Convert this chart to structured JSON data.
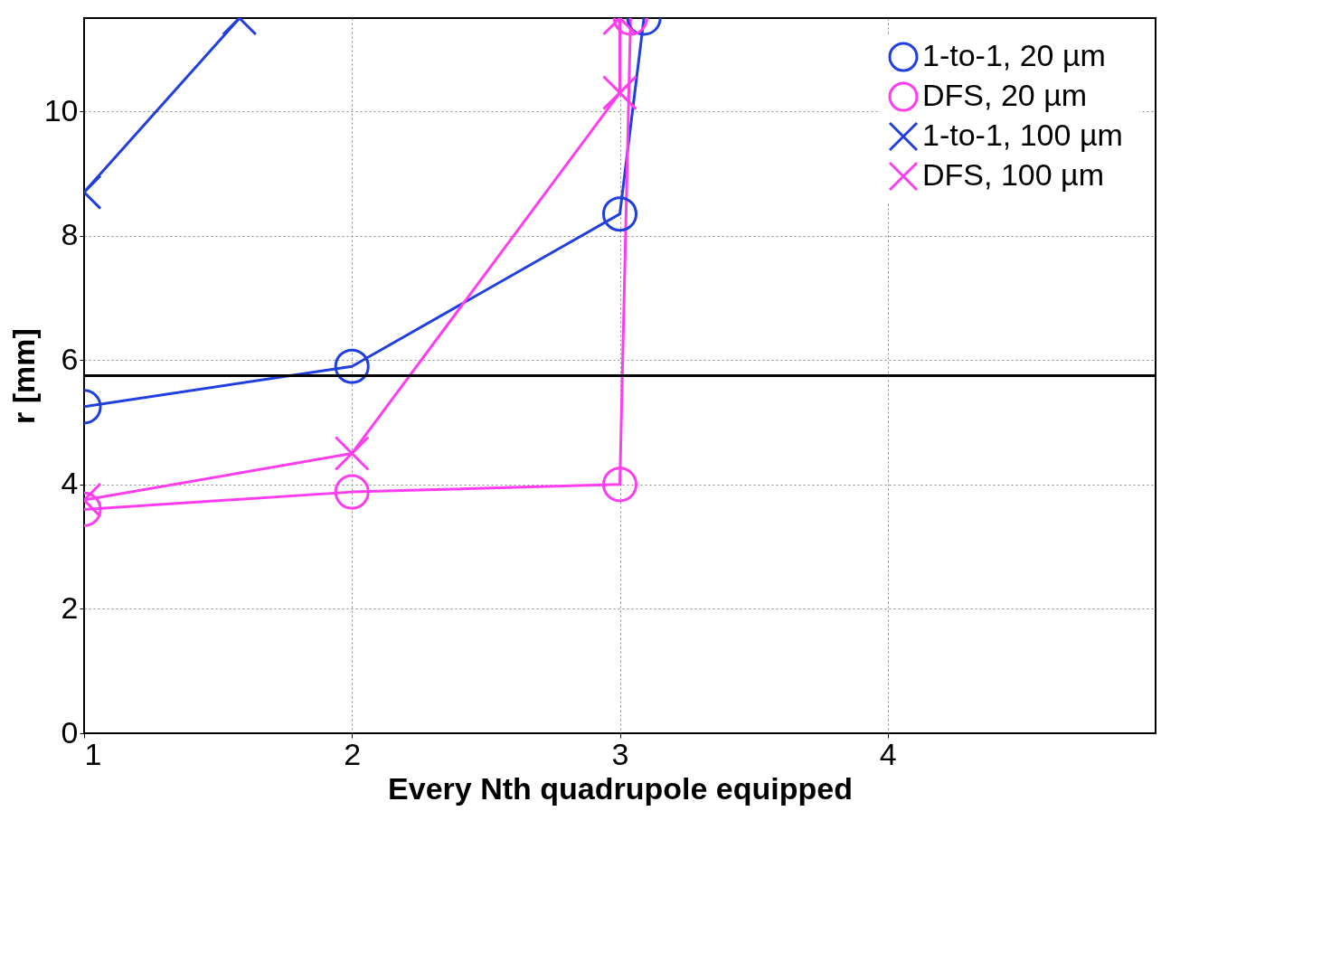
{
  "chart_data": {
    "type": "line",
    "xlabel": "Every Nth quadrupole equipped",
    "ylabel": "r [mm]",
    "xlim": [
      1,
      5
    ],
    "xticks": [
      1,
      2,
      3,
      4
    ],
    "ylim": [
      0,
      11.5
    ],
    "yticks": [
      0,
      2,
      4,
      6,
      8,
      10
    ],
    "grid": true,
    "legend": "top right",
    "line_style": "solid",
    "ref_lines": [
      {
        "axis": "y",
        "value": 5.75,
        "color": "#000000"
      }
    ],
    "series": [
      {
        "name": "1-to-1,  20 µm",
        "color": "#1f3fe0",
        "marker": "circle",
        "x": [
          1,
          2,
          3,
          3.09
        ],
        "values": [
          5.25,
          5.9,
          8.35,
          11.5
        ]
      },
      {
        "name": "DFS,  20 µm",
        "color": "#ff3df0",
        "marker": "circle",
        "x": [
          1,
          2,
          3,
          3.04
        ],
        "values": [
          3.6,
          3.88,
          4.0,
          11.5
        ]
      },
      {
        "name": "1-to-1,  100 µm",
        "color": "#1f3fe0",
        "marker": "cross",
        "x": [
          1,
          1.58
        ],
        "values": [
          8.7,
          11.5
        ]
      },
      {
        "name": "DFS,  100 µm",
        "color": "#ff3df0",
        "marker": "cross",
        "x": [
          1,
          2,
          3,
          3.0
        ],
        "values": [
          3.75,
          4.5,
          10.3,
          11.5
        ]
      }
    ]
  }
}
